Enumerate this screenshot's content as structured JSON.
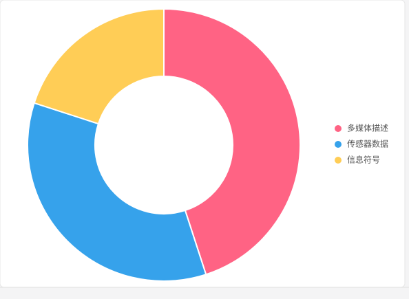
{
  "chart_data": {
    "type": "doughnut",
    "categories": [
      "多媒体描述",
      "传感器数据",
      "信息符号"
    ],
    "values": [
      45,
      35,
      20
    ],
    "colors": [
      "#ff6384",
      "#36a2eb",
      "#ffcd56"
    ],
    "legend": "right"
  }
}
